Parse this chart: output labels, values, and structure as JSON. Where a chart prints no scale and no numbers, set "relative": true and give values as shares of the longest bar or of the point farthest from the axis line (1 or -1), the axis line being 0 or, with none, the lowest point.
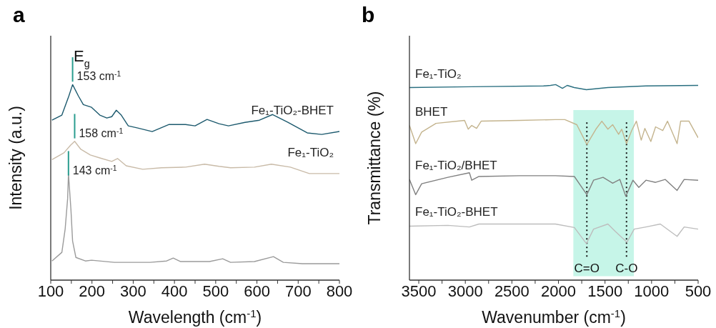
{
  "chart_data": [
    {
      "type": "line",
      "title": "a",
      "xlabel": "Wavelength (cm$^{-1}$)",
      "ylabel": "Intensity (a.u.)",
      "relative": true,
      "marker": "none",
      "xlim": [
        100,
        800
      ],
      "xticks": [
        100,
        {
          "value": 150,
          "label": null
        },
        200,
        {
          "value": 250,
          "label": null
        },
        300,
        {
          "value": 350,
          "label": null
        },
        400,
        {
          "value": 450,
          "label": null
        },
        500,
        {
          "value": 550,
          "label": null
        },
        600,
        {
          "value": 650,
          "label": null
        },
        700,
        {
          "value": 750,
          "label": null
        },
        800
      ],
      "annotations": [
        "E$_{g}$",
        {
          "text": "153 cm$^{-1}$",
          "x": 153,
          "y": 1.0
        },
        {
          "text": "158 cm$^{-1}$",
          "x": 158,
          "y": 0.71
        },
        {
          "text": "143 cm$^{-1}$",
          "x": 143,
          "y": 0.52
        }
      ],
      "series": [
        {
          "name": "Fe₁-TiO₂-BHET",
          "color": "#1d5a6e",
          "x": [
            103,
            127,
            144,
            153,
            167,
            179,
            199,
            219,
            236,
            248,
            259,
            271,
            288,
            311,
            346,
            387,
            427,
            450,
            479,
            508,
            531,
            571,
            606,
            638,
            675,
            722,
            757,
            800
          ],
          "values": [
            0.818,
            0.844,
            0.942,
            1.0,
            0.942,
            0.898,
            0.884,
            0.844,
            0.829,
            0.836,
            0.869,
            0.844,
            0.789,
            0.778,
            0.76,
            0.796,
            0.796,
            0.789,
            0.822,
            0.8,
            0.789,
            0.807,
            0.818,
            0.847,
            0.807,
            0.753,
            0.745,
            0.76
          ]
        },
        {
          "name": "Fe₁-TiO₂",
          "color": "#c9bba8",
          "x": [
            103,
            132,
            148,
            158,
            173,
            196,
            219,
            248,
            262,
            283,
            323,
            369,
            427,
            473,
            508,
            536,
            594,
            635,
            681,
            727,
            800
          ],
          "values": [
            0.616,
            0.651,
            0.69,
            0.71,
            0.669,
            0.64,
            0.625,
            0.607,
            0.622,
            0.585,
            0.567,
            0.575,
            0.578,
            0.593,
            0.582,
            0.575,
            0.578,
            0.593,
            0.578,
            0.545,
            0.545
          ]
        },
        {
          "color": "#9b9b9b",
          "x": [
            103,
            127,
            135,
            141,
            143,
            149,
            153,
            161,
            184,
            199,
            254,
            341,
            381,
            397,
            415,
            485,
            517,
            536,
            594,
            640,
            664,
            710,
            800
          ],
          "values": [
            0.098,
            0.142,
            0.262,
            0.418,
            0.545,
            0.36,
            0.2,
            0.116,
            0.098,
            0.102,
            0.091,
            0.091,
            0.098,
            0.113,
            0.095,
            0.095,
            0.109,
            0.091,
            0.095,
            0.12,
            0.091,
            0.084,
            0.084
          ]
        }
      ]
    },
    {
      "type": "line",
      "title": "b",
      "xlabel": "Wavenumber (cm$^{-1}$)",
      "ylabel": "Transmittance (%)",
      "relative": true,
      "marker": "none",
      "xlim": [
        3600,
        500
      ],
      "xticks": [
        3500,
        {
          "value": 3250,
          "label": null
        },
        3000,
        {
          "value": 2750,
          "label": null
        },
        2500,
        {
          "value": 2250,
          "label": null
        },
        2000,
        {
          "value": 1750,
          "label": null
        },
        1500,
        {
          "value": 1250,
          "label": null
        },
        1000,
        {
          "value": 750,
          "label": null
        },
        500
      ],
      "bands": [
        {
          "axis": "x",
          "from": 1840,
          "to": 1190,
          "color": "#c6f5e8"
        }
      ],
      "ref_lines": [
        {
          "axis": "x",
          "value": 1695,
          "label": "C=O",
          "line_style": "dotted"
        },
        {
          "axis": "x",
          "value": 1269,
          "label": "C-O",
          "line_style": "dotted"
        }
      ],
      "series": [
        {
          "name": "Fe₁-TiO₂",
          "color": "#2a6f80",
          "x": [
            3600,
            2930,
            2160,
            2085,
            2030,
            1957,
            1906,
            1831,
            1700,
            1470,
            1060,
            500
          ],
          "values": [
            0.985,
            0.989,
            0.993,
            0.996,
            1.0,
            0.981,
            0.996,
            0.985,
            0.974,
            0.985,
            0.993,
            0.996
          ]
        },
        {
          "name": "BHET",
          "color": "#c4b48e",
          "x": [
            3600,
            3533,
            3469,
            3315,
            3008,
            2969,
            2931,
            2879,
            2830,
            2418,
            2033,
            1931,
            1803,
            1695,
            1598,
            1534,
            1469,
            1418,
            1354,
            1321,
            1269,
            1214,
            1163,
            1111,
            1072,
            1008,
            957,
            880,
            829,
            726,
            688,
            598,
            500
          ],
          "values": [
            0.791,
            0.698,
            0.757,
            0.802,
            0.817,
            0.772,
            0.791,
            0.776,
            0.813,
            0.817,
            0.821,
            0.821,
            0.795,
            0.694,
            0.772,
            0.813,
            0.772,
            0.795,
            0.746,
            0.772,
            0.698,
            0.765,
            0.813,
            0.716,
            0.776,
            0.709,
            0.784,
            0.765,
            0.813,
            0.698,
            0.813,
            0.813,
            0.728
          ]
        },
        {
          "name": "Fe₁-TiO₂/BHET",
          "color": "#808080",
          "x": [
            3600,
            3533,
            3469,
            3187,
            2956,
            2931,
            2854,
            2418,
            2033,
            1829,
            1695,
            1623,
            1521,
            1418,
            1341,
            1277,
            1200,
            1137,
            1060,
            957,
            854,
            726,
            650,
            500
          ],
          "values": [
            0.515,
            0.437,
            0.493,
            0.526,
            0.549,
            0.511,
            0.53,
            0.534,
            0.534,
            0.53,
            0.437,
            0.511,
            0.526,
            0.496,
            0.515,
            0.429,
            0.511,
            0.474,
            0.511,
            0.5,
            0.515,
            0.459,
            0.515,
            0.511
          ]
        },
        {
          "name": "Fe₁-TiO₂-BHET",
          "color": "#bdbdbd",
          "x": [
            3600,
            3187,
            2956,
            2854,
            2418,
            2033,
            1829,
            1700,
            1623,
            1469,
            1392,
            1264,
            1187,
            1060,
            906,
            726,
            650,
            500
          ],
          "values": [
            0.276,
            0.28,
            0.272,
            0.287,
            0.287,
            0.287,
            0.269,
            0.187,
            0.261,
            0.287,
            0.25,
            0.194,
            0.261,
            0.272,
            0.287,
            0.224,
            0.272,
            0.261
          ]
        }
      ]
    }
  ]
}
